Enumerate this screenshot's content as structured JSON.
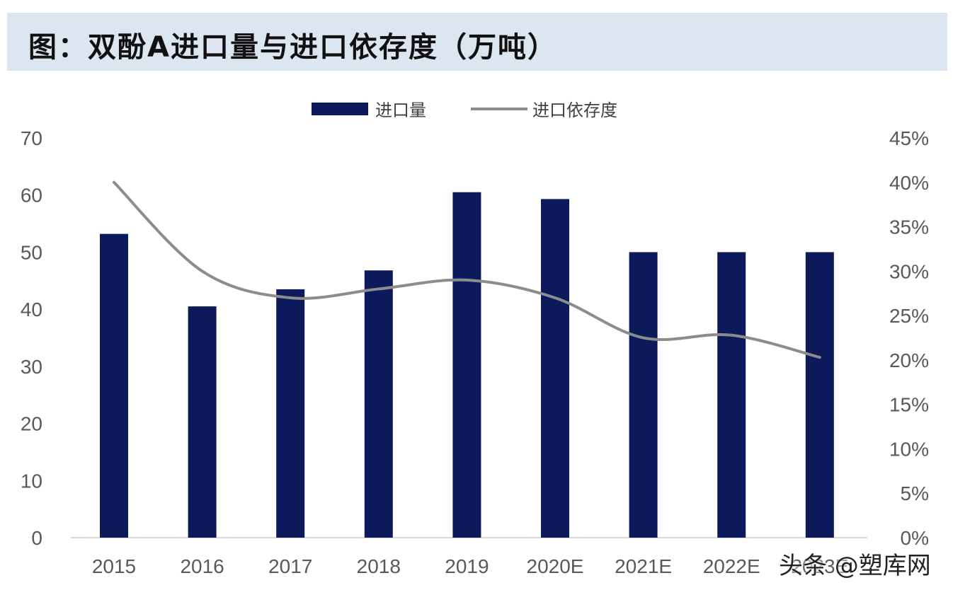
{
  "title": "图：双酚A进口量与进口依存度（万吨）",
  "watermark": "头条 @塑库网",
  "colors": {
    "bar": "#0c1a5c",
    "line": "#8c8c8c",
    "title_bg": "#dce6f1",
    "axis_text": "#595959"
  },
  "chart_data": {
    "type": "bar",
    "categories": [
      "2015",
      "2016",
      "2017",
      "2018",
      "2019",
      "2020E",
      "2021E",
      "2022E",
      "2023E"
    ],
    "series": [
      {
        "name": "进口量",
        "type": "bar",
        "axis": "left",
        "values": [
          53.2,
          40.5,
          43.5,
          46.8,
          60.5,
          59.3,
          50.0,
          50.0,
          50.0
        ]
      },
      {
        "name": "进口依存度",
        "type": "line",
        "axis": "right",
        "values": [
          0.4,
          0.3,
          0.27,
          0.28,
          0.29,
          0.27,
          0.225,
          0.228,
          0.203
        ]
      }
    ],
    "y_left": {
      "lim": [
        0,
        70
      ],
      "ticks": [
        "0",
        "10",
        "20",
        "30",
        "40",
        "50",
        "60",
        "70"
      ]
    },
    "y_right": {
      "lim": [
        0,
        0.45
      ],
      "ticks": [
        "0%",
        "5%",
        "10%",
        "15%",
        "20%",
        "25%",
        "30%",
        "35%",
        "40%",
        "45%"
      ]
    },
    "legend": {
      "position": "top",
      "items": [
        "进口量",
        "进口依存度"
      ]
    },
    "grid": false
  }
}
